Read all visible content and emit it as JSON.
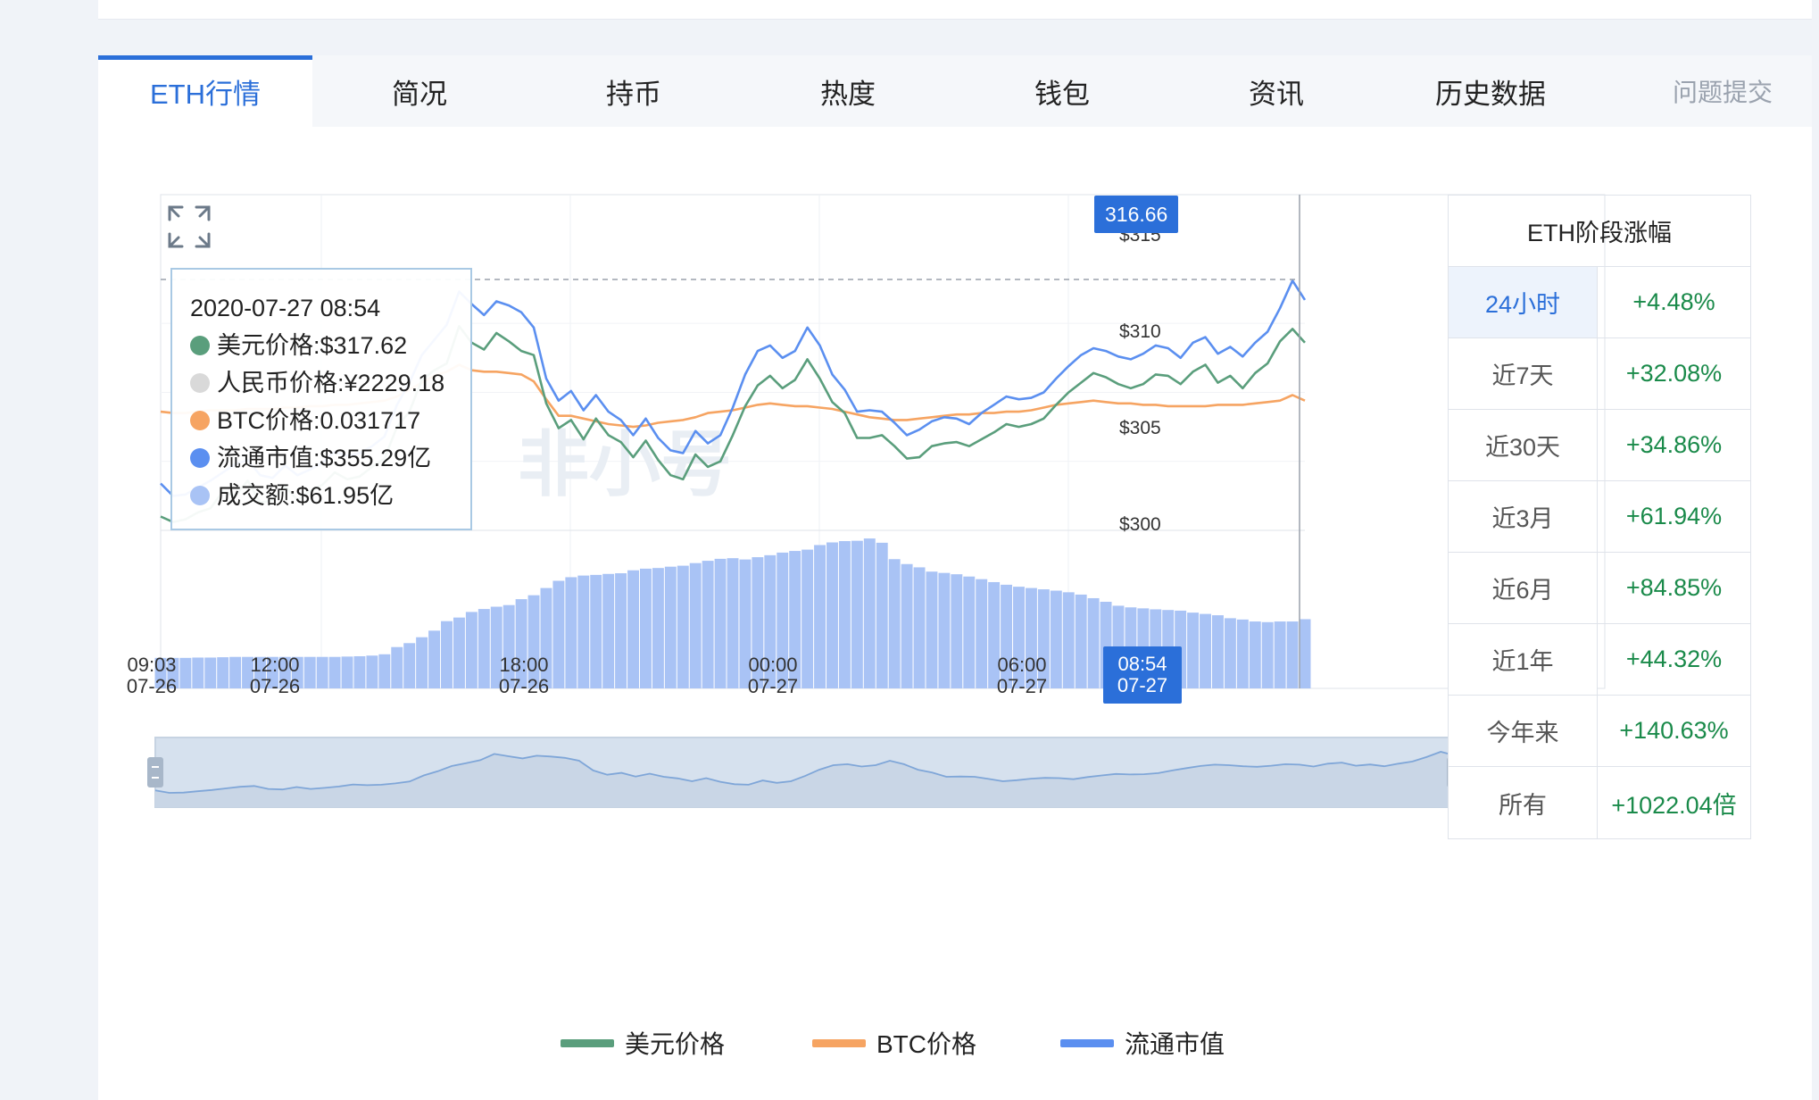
{
  "tabs": [
    {
      "label": "ETH行情",
      "active": true
    },
    {
      "label": "简况"
    },
    {
      "label": "持币"
    },
    {
      "label": "热度"
    },
    {
      "label": "钱包"
    },
    {
      "label": "资讯"
    },
    {
      "label": "历史数据"
    }
  ],
  "feedback_label": "问题提交",
  "tooltip": {
    "datetime": "2020-07-27 08:54",
    "rows": [
      {
        "label": "美元价格:$317.62",
        "color": "#5a9e7c"
      },
      {
        "label": "人民币价格:¥2229.18",
        "color": "#d9d9d9"
      },
      {
        "label": "BTC价格:0.031717",
        "color": "#f6a462"
      },
      {
        "label": "流通市值:$355.29亿",
        "color": "#5b8ff0"
      },
      {
        "label": "成交额:$61.95亿",
        "color": "#a9c3f5"
      }
    ]
  },
  "crosshair": {
    "price": "316.66",
    "time": "08:54",
    "date": "07-27"
  },
  "watermark": "非小号",
  "stats": {
    "title": "ETH阶段涨幅",
    "rows": [
      {
        "period": "24小时",
        "value": "+4.48%",
        "active": true
      },
      {
        "period": "近7天",
        "value": "+32.08%"
      },
      {
        "period": "近30天",
        "value": "+34.86%"
      },
      {
        "period": "近3月",
        "value": "+61.94%"
      },
      {
        "period": "近6月",
        "value": "+84.85%"
      },
      {
        "period": "近1年",
        "value": "+44.32%"
      },
      {
        "period": "今年来",
        "value": "+140.63%"
      },
      {
        "period": "所有",
        "value": "+1022.04倍"
      }
    ]
  },
  "chart_data": {
    "type": "line",
    "x_ticks": [
      {
        "time": "09:03",
        "date": "07-26"
      },
      {
        "time": "12:00",
        "date": "07-26"
      },
      {
        "time": "18:00",
        "date": "07-26"
      },
      {
        "time": "00:00",
        "date": "07-27"
      },
      {
        "time": "06:00",
        "date": "07-27"
      },
      {
        "time": "08:54",
        "date": "07-27"
      }
    ],
    "y_ticks": [
      "$300",
      "$305",
      "$310",
      "$315"
    ],
    "ylim": [
      300,
      319.8
    ],
    "series": [
      {
        "name": "美元价格",
        "color": "#5a9e7c",
        "values": [
          301.0,
          300.6,
          300.8,
          301.3,
          301.6,
          302.8,
          302.5,
          303.6,
          302.0,
          302.2,
          303.2,
          302.2,
          302.8,
          303.3,
          304.2,
          303.7,
          303.9,
          304.6,
          305.2,
          307.5,
          308.6,
          310.9,
          311.6,
          312.1,
          314.8,
          313.6,
          313.1,
          314.3,
          313.7,
          313.0,
          312.7,
          309.2,
          307.4,
          308.0,
          306.6,
          308.1,
          306.9,
          306.4,
          305.3,
          306.5,
          305.1,
          304.0,
          303.7,
          305.5,
          304.6,
          305.0,
          306.9,
          309.0,
          310.5,
          311.2,
          310.3,
          310.9,
          312.4,
          311.0,
          309.3,
          308.5,
          306.7,
          306.7,
          306.9,
          306.1,
          305.2,
          305.3,
          306.1,
          306.3,
          306.4,
          306.1,
          306.6,
          307.1,
          307.7,
          307.5,
          307.7,
          308.1,
          309.1,
          310.0,
          310.7,
          311.4,
          311.1,
          310.6,
          310.3,
          310.6,
          311.3,
          311.2,
          310.6,
          311.5,
          312.0,
          310.7,
          311.2,
          310.3,
          311.4,
          312.1,
          313.7,
          314.6,
          313.6
        ]
      },
      {
        "name": "BTC价格",
        "color": "#f6a462",
        "values": [
          308.6,
          308.5,
          308.5,
          308.6,
          308.7,
          308.7,
          308.7,
          308.8,
          308.8,
          308.8,
          308.9,
          308.9,
          309.0,
          309.0,
          309.1,
          309.1,
          309.2,
          309.3,
          309.4,
          309.7,
          310.2,
          310.7,
          311.2,
          311.5,
          312.0,
          311.6,
          311.5,
          311.5,
          311.4,
          311.3,
          310.8,
          309.5,
          308.3,
          308.3,
          308.1,
          307.9,
          307.7,
          307.6,
          307.5,
          307.6,
          307.8,
          307.9,
          308.0,
          308.2,
          308.5,
          308.6,
          308.7,
          308.9,
          309.1,
          309.2,
          309.1,
          309.0,
          309.0,
          308.9,
          308.8,
          308.6,
          308.4,
          308.2,
          308.1,
          308.0,
          308.0,
          308.1,
          308.2,
          308.3,
          308.4,
          308.4,
          308.5,
          308.5,
          308.6,
          308.6,
          308.7,
          308.9,
          309.1,
          309.2,
          309.3,
          309.4,
          309.3,
          309.2,
          309.2,
          309.1,
          309.1,
          309.0,
          309.0,
          309.0,
          309.0,
          309.1,
          309.1,
          309.1,
          309.2,
          309.3,
          309.4,
          309.8,
          309.4
        ]
      },
      {
        "name": "流通市值",
        "color": "#5b8ff0",
        "values": [
          303.4,
          302.5,
          302.6,
          303.1,
          303.6,
          304.2,
          304.8,
          305.1,
          304.0,
          303.8,
          304.7,
          304.0,
          304.4,
          304.9,
          305.7,
          305.4,
          305.6,
          306.1,
          306.8,
          309.1,
          310.7,
          312.7,
          313.8,
          314.9,
          317.3,
          316.4,
          315.6,
          316.6,
          316.3,
          315.8,
          314.7,
          311.0,
          309.4,
          310.1,
          308.7,
          309.8,
          308.6,
          308.0,
          306.9,
          308.1,
          306.7,
          305.8,
          305.6,
          307.2,
          306.3,
          306.9,
          308.9,
          311.3,
          313.0,
          313.4,
          312.5,
          313.0,
          314.7,
          313.4,
          311.3,
          310.2,
          308.6,
          308.7,
          308.6,
          307.8,
          306.9,
          307.3,
          307.9,
          308.2,
          308.1,
          307.7,
          308.5,
          309.1,
          309.7,
          309.5,
          309.6,
          310.0,
          311.0,
          311.9,
          312.7,
          313.2,
          313.0,
          312.6,
          312.4,
          312.8,
          313.4,
          313.2,
          312.5,
          313.6,
          314.0,
          312.8,
          313.3,
          312.6,
          313.6,
          314.4,
          316.1,
          318.1,
          316.7
        ]
      }
    ],
    "volume_series": {
      "name": "成交额",
      "color": "#a9c3f5",
      "values": [
        9.3,
        9.3,
        9.3,
        9.4,
        9.4,
        9.5,
        9.6,
        9.6,
        9.6,
        9.6,
        9.6,
        9.6,
        9.6,
        9.6,
        9.6,
        9.7,
        9.8,
        10.0,
        10.4,
        12.6,
        13.8,
        15.6,
        17.6,
        20.5,
        21.6,
        23.3,
        24.2,
        24.9,
        25.4,
        27.2,
        28.4,
        30.6,
        32.8,
        33.9,
        34.4,
        34.6,
        34.9,
        35.1,
        36.0,
        36.5,
        36.7,
        37.1,
        37.4,
        38.2,
        38.9,
        39.5,
        39.7,
        39.3,
        40.0,
        40.6,
        41.4,
        41.9,
        42.3,
        43.7,
        44.5,
        44.9,
        45.0,
        45.7,
        44.4,
        39.4,
        37.9,
        36.9,
        35.6,
        35.2,
        34.8,
        34.1,
        33.3,
        32.4,
        31.6,
        31.0,
        30.6,
        30.2,
        29.8,
        29.3,
        28.6,
        27.5,
        26.4,
        25.2,
        24.7,
        24.4,
        24.1,
        23.9,
        23.7,
        23.1,
        22.7,
        22.3,
        21.4,
        21.0,
        20.4,
        20.2,
        20.4,
        20.4,
        21.1
      ]
    }
  }
}
